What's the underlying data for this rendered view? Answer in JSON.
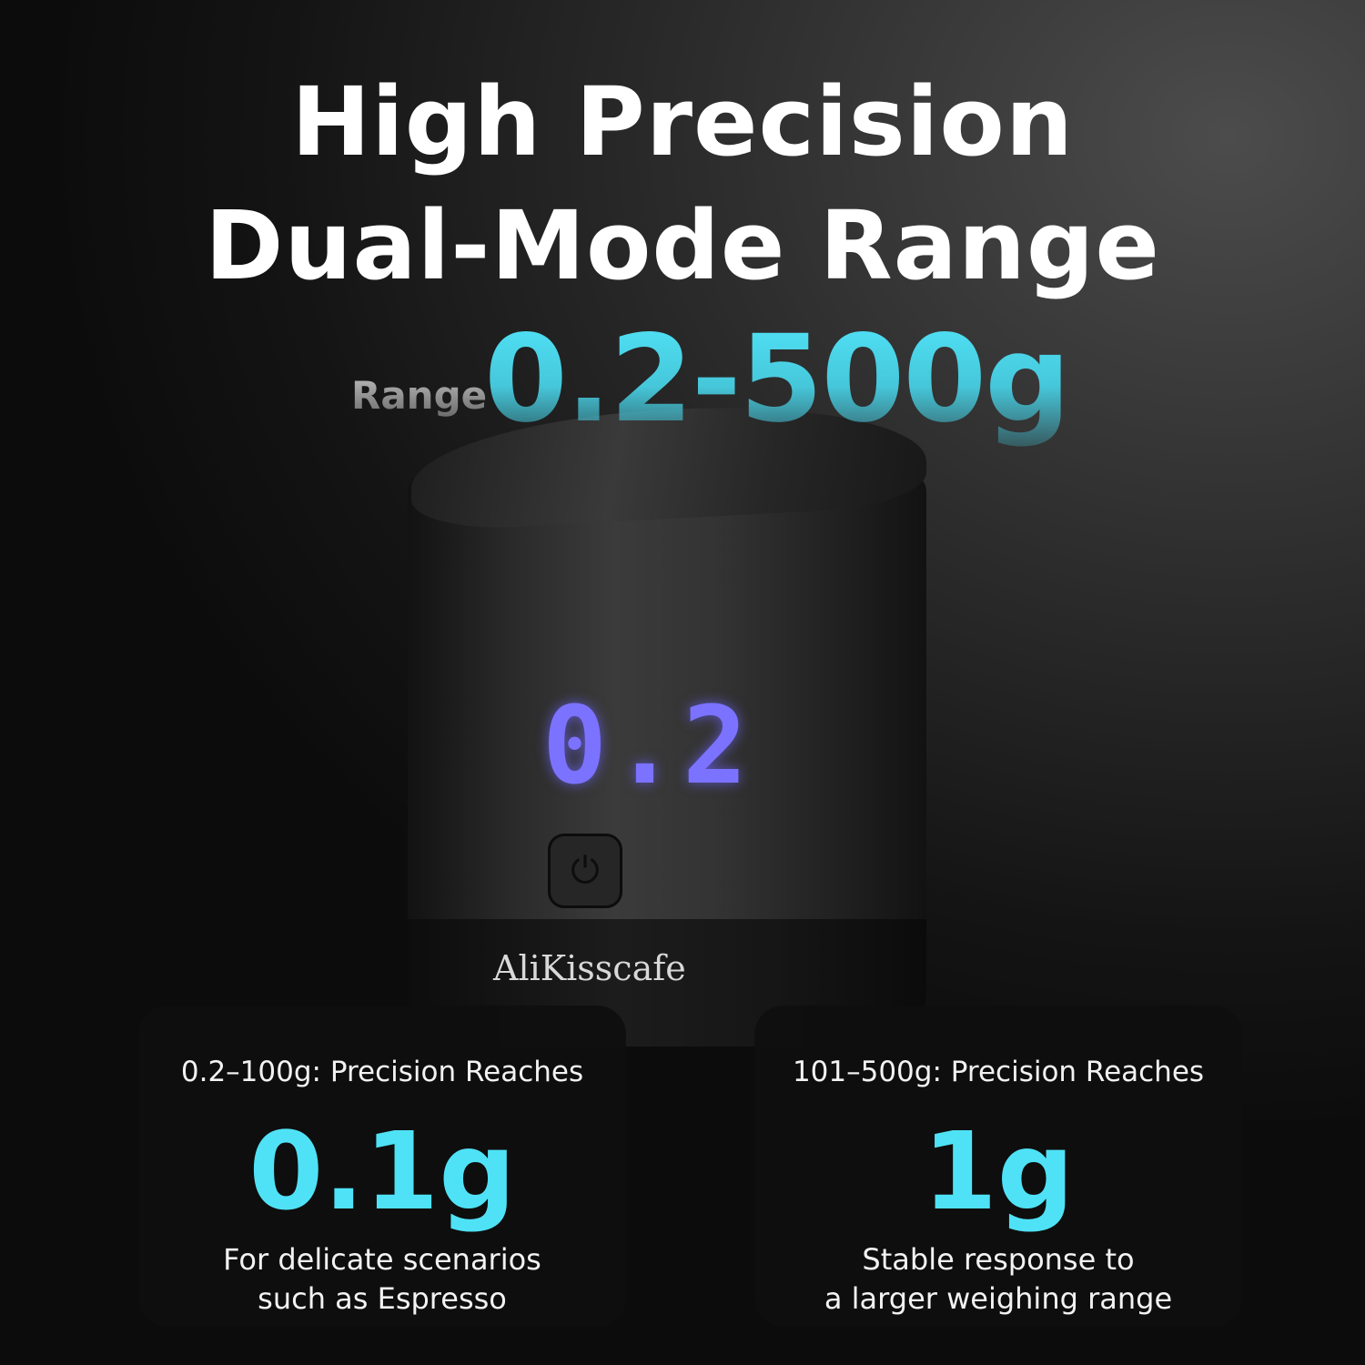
{
  "headline": {
    "line1": "High Precision",
    "line2": "Dual-Mode Range"
  },
  "range": {
    "label": "Range",
    "value": "0.2-500g"
  },
  "product": {
    "brand": "AliKisscafe",
    "display_reading": "0.2",
    "power_icon": "power-icon"
  },
  "cards": [
    {
      "heading": "0.2–100g: Precision Reaches",
      "value": "0.1g",
      "desc_line1": "For delicate scenarios",
      "desc_line2": "such as Espresso"
    },
    {
      "heading": "101–500g: Precision Reaches",
      "value": "1g",
      "desc_line1": "Stable response to",
      "desc_line2": "a larger weighing range"
    }
  ],
  "colors": {
    "accent": "#4fe2f6",
    "led": "#6f66ff",
    "background": "#1a1a1a"
  }
}
